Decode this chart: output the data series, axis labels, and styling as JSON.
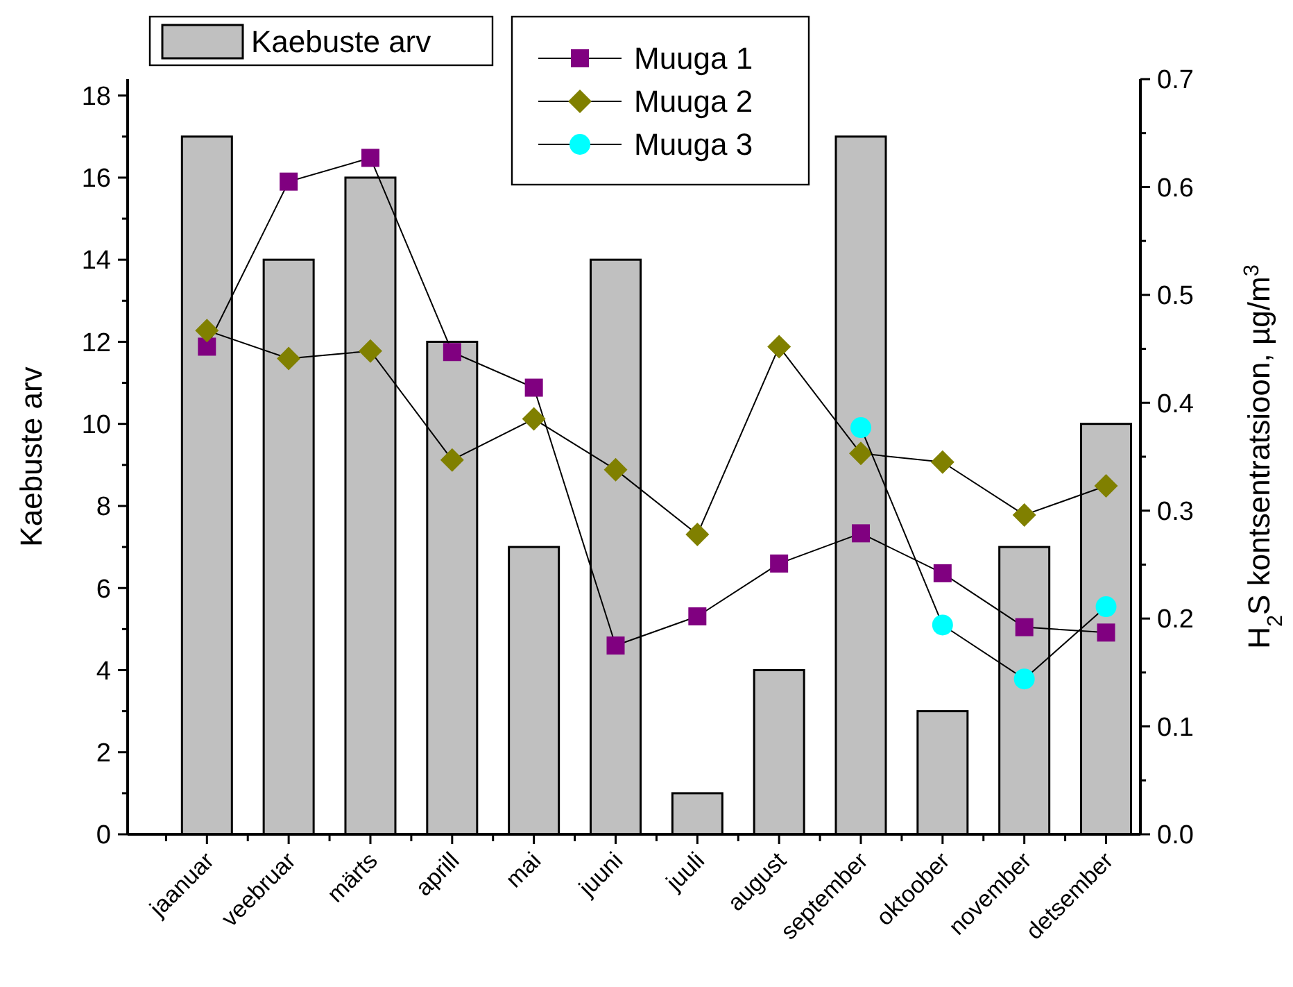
{
  "chart_data": {
    "type": "bar",
    "categories": [
      "jaanuar",
      "veebruar",
      "märts",
      "aprill",
      "mai",
      "juuni",
      "juuli",
      "august",
      "september",
      "oktoober",
      "november",
      "detsember"
    ],
    "ylabel": "Kaebuste arv",
    "y2label": "H$_{2}$S kontsentratsioon, µg/m$^{3}$",
    "ylim": [
      0,
      18.4
    ],
    "yticks": [
      0,
      2,
      4,
      6,
      8,
      10,
      12,
      14,
      16,
      18
    ],
    "y2lim": [
      0,
      0.7
    ],
    "y2ticks": [
      {
        "value": 0,
        "label": "0.0"
      },
      0.1,
      0.2,
      0.3,
      0.4,
      0.5,
      0.6,
      0.7
    ],
    "legend": "top",
    "grid": false,
    "series": [
      {
        "name": "Kaebuste arv",
        "color": "#c0c0c0",
        "values": [
          17,
          14,
          16,
          12,
          7,
          14,
          1,
          4,
          17,
          3,
          7,
          10
        ]
      },
      {
        "name": "Muuga 1",
        "type": "line",
        "axis": "y2",
        "marker": "square",
        "color": "#800080",
        "values": [
          0.452,
          0.605,
          0.627,
          0.447,
          0.414,
          0.175,
          0.202,
          0.251,
          0.279,
          0.242,
          0.192,
          0.187
        ]
      },
      {
        "name": "Muuga 2",
        "type": "line",
        "axis": "y2",
        "marker": "diamond",
        "color": "#808000",
        "values": [
          0.467,
          0.441,
          0.448,
          0.347,
          0.385,
          0.338,
          0.278,
          0.452,
          0.353,
          0.345,
          0.296,
          0.323
        ]
      },
      {
        "name": "Muuga 3",
        "type": "line",
        "axis": "y2",
        "marker": "circle",
        "color": "#00ffff",
        "values": [
          null,
          null,
          null,
          null,
          null,
          null,
          null,
          null,
          0.377,
          0.194,
          0.144,
          0.211
        ]
      }
    ]
  }
}
